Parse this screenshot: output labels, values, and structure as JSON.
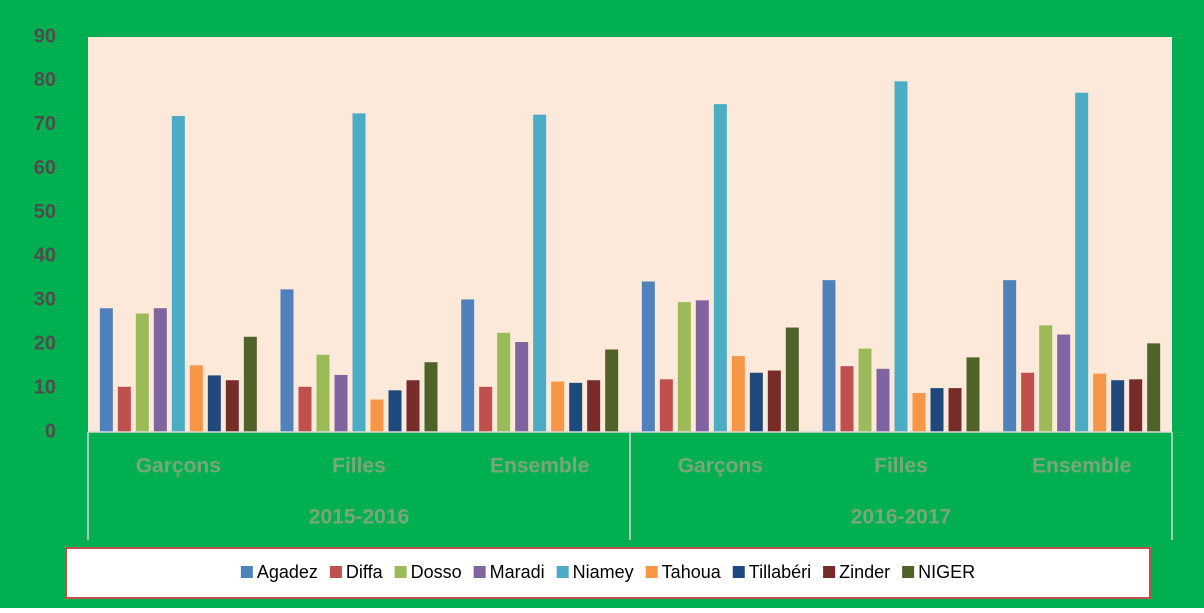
{
  "chart_data": {
    "type": "bar",
    "categories": [
      "Garçons",
      "Filles",
      "Ensemble",
      "Garçons",
      "Filles",
      "Ensemble"
    ],
    "groups": [
      "2015-2016",
      "2016-2017"
    ],
    "series": [
      {
        "name": "Agadez",
        "color": "#4f81bd",
        "values": [
          28.2,
          32.5,
          30.2,
          34.3,
          34.6,
          34.6
        ]
      },
      {
        "name": "Diffa",
        "color": "#c0504d",
        "values": [
          10.3,
          10.3,
          10.3,
          12,
          15,
          13.5
        ]
      },
      {
        "name": "Dosso",
        "color": "#9bbb59",
        "values": [
          27,
          17.6,
          22.6,
          29.6,
          19,
          24.3
        ]
      },
      {
        "name": "Maradi",
        "color": "#8064a2",
        "values": [
          28.2,
          13,
          20.5,
          30,
          14.4,
          22.2
        ]
      },
      {
        "name": "Niamey",
        "color": "#4bacc6",
        "values": [
          72,
          72.6,
          72.3,
          74.7,
          79.9,
          77.3
        ]
      },
      {
        "name": "Tahoua",
        "color": "#f79646",
        "values": [
          15.2,
          7.4,
          11.5,
          17.3,
          8.9,
          13.3
        ]
      },
      {
        "name": "Tillabéri",
        "color": "#1f497d",
        "values": [
          12.9,
          9.5,
          11.2,
          13.5,
          10,
          11.8
        ]
      },
      {
        "name": "Zinder",
        "color": "#772c2a",
        "values": [
          11.8,
          11.8,
          11.8,
          14,
          10,
          12
        ]
      },
      {
        "name": "NIGER",
        "color": "#4f6228",
        "values": [
          21.7,
          15.9,
          18.8,
          23.8,
          17,
          20.2
        ]
      }
    ],
    "ylim": [
      0,
      90
    ],
    "yticks": [
      0,
      10,
      20,
      30,
      40,
      50,
      60,
      70,
      80,
      90
    ],
    "grid": false,
    "legend": "bottom"
  }
}
